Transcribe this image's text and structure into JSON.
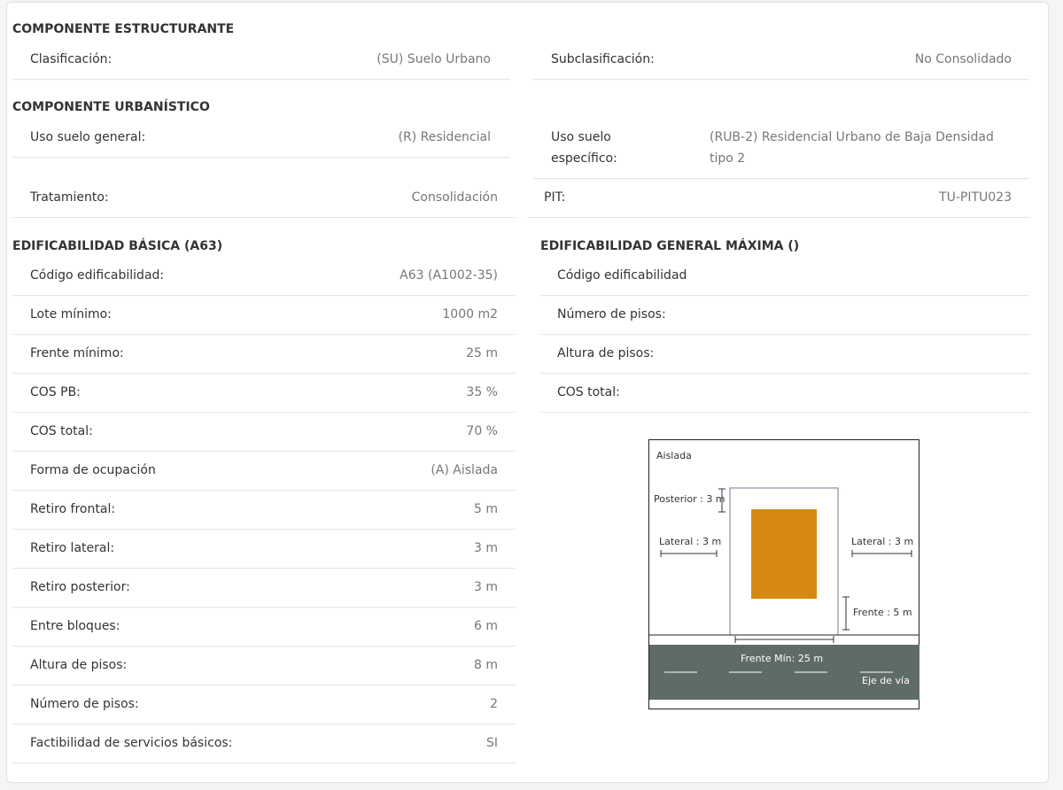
{
  "sections": {
    "estructurante": "COMPONENTE ESTRUCTURANTE",
    "urbanistico": "COMPONENTE URBANÍSTICO",
    "basica": "EDIFICABILIDAD BÁSICA (A63)",
    "general": "EDIFICABILIDAD GENERAL MÁXIMA ()"
  },
  "estructurante": {
    "clasificacion": {
      "label": "Clasificación:",
      "value": "(SU) Suelo Urbano"
    },
    "subclasificacion": {
      "label": "Subclasificación:",
      "value": "No Consolidado"
    }
  },
  "urbanistico": {
    "uso_general": {
      "label": "Uso suelo general:",
      "value": "(R) Residencial"
    },
    "uso_especifico": {
      "label_line1": "Uso suelo",
      "label_line2": "específico:",
      "value_line1": "(RUB-2) Residencial Urbano de Baja Densidad",
      "value_line2": "tipo 2"
    },
    "tratamiento": {
      "label": "Tratamiento:",
      "value": "Consolidación"
    },
    "pit": {
      "label": "PIT:",
      "value": "TU-PITU023"
    }
  },
  "basica": [
    {
      "label": "Código edificabilidad:",
      "value": "A63 (A1002-35)"
    },
    {
      "label": "Lote mínimo:",
      "value": "1000 m2"
    },
    {
      "label": "Frente mínimo:",
      "value": "25 m"
    },
    {
      "label": "COS PB:",
      "value": "35 %"
    },
    {
      "label": "COS total:",
      "value": "70 %"
    },
    {
      "label": "Forma de ocupación",
      "value": "(A) Aislada"
    },
    {
      "label": "Retiro frontal:",
      "value": "5 m"
    },
    {
      "label": "Retiro lateral:",
      "value": "3 m"
    },
    {
      "label": "Retiro posterior:",
      "value": "3 m"
    },
    {
      "label": "Entre bloques:",
      "value": "6 m"
    },
    {
      "label": "Altura de pisos:",
      "value": "8 m"
    },
    {
      "label": "Número de pisos:",
      "value": "2"
    },
    {
      "label": "Factibilidad de servicios básicos:",
      "value": "SI"
    }
  ],
  "general": [
    {
      "label": "Código edificabilidad",
      "value": ""
    },
    {
      "label": "Número de pisos:",
      "value": ""
    },
    {
      "label": "Altura de pisos:",
      "value": ""
    },
    {
      "label": "COS total:",
      "value": ""
    }
  ],
  "diagram": {
    "title": "Aislada",
    "posterior": "Posterior : 3 m",
    "lateral_left": "Lateral : 3 m",
    "lateral_right": "Lateral : 3 m",
    "frente": "Frente : 5 m",
    "frente_min": "Frente Mín: 25 m",
    "eje": "Eje de vía",
    "colors": {
      "building": "#d68910",
      "road": "#5f6b66",
      "lot_border": "#6b7f99"
    }
  }
}
